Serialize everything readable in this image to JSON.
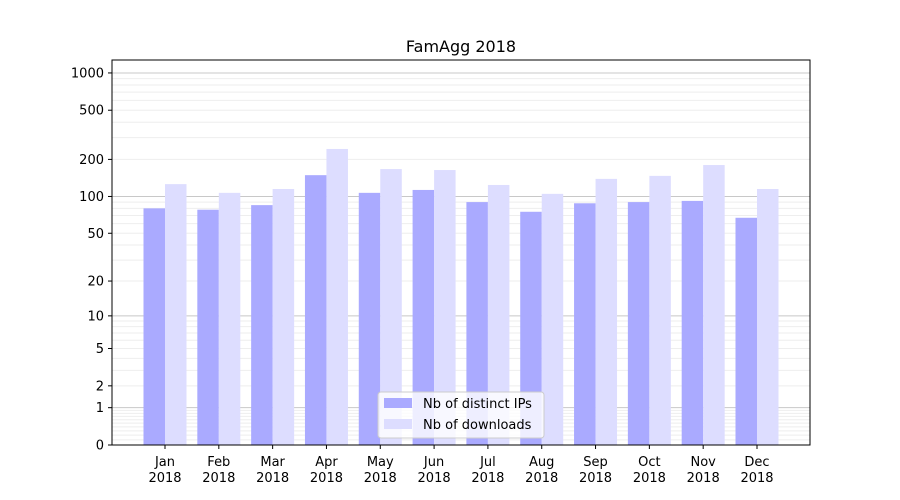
{
  "chart_data": {
    "type": "bar",
    "title": "FamAgg 2018",
    "xlabel": "",
    "ylabel": "",
    "yscale": "log10(1+y)",
    "ylim": [
      0,
      1300
    ],
    "yticks": [
      0,
      1,
      2,
      5,
      10,
      20,
      50,
      100,
      200,
      500,
      1000
    ],
    "grid": true,
    "legend_position": "lower-center",
    "categories": [
      "Jan\n2018",
      "Feb\n2018",
      "Mar\n2018",
      "Apr\n2018",
      "May\n2018",
      "Jun\n2018",
      "Jul\n2018",
      "Aug\n2018",
      "Sep\n2018",
      "Oct\n2018",
      "Nov\n2018",
      "Dec\n2018"
    ],
    "series": [
      {
        "name": "Nb of distinct IPs",
        "color": "#aaaaff",
        "values": [
          80,
          78,
          85,
          149,
          107,
          113,
          90,
          75,
          88,
          90,
          92,
          67
        ]
      },
      {
        "name": "Nb of downloads",
        "color": "#ddddff",
        "values": [
          126,
          107,
          115,
          243,
          167,
          164,
          124,
          105,
          139,
          147,
          180,
          115
        ]
      }
    ]
  }
}
